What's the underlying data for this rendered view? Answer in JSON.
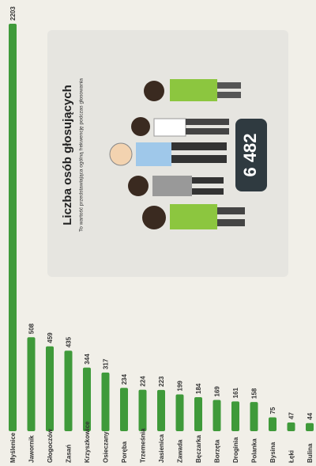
{
  "chart_data": {
    "type": "bar",
    "title": "Liczba osób głosujących",
    "subtitle": "To wartość przedstawiająca ogólną frekwencję podczas głosowania",
    "annotation": "6 482",
    "categories": [
      "Myślenice",
      "Jawornik",
      "Głogoczów",
      "Zasań",
      "Krzyszkowice",
      "Osieczany",
      "Poręba",
      "Trzemeśnia",
      "Jasienica",
      "Zawada",
      "Bęczarka",
      "Borzęta",
      "Droginia",
      "Polanka",
      "Bysina",
      "Łęki",
      "Bulina"
    ],
    "values": [
      2203,
      508,
      459,
      435,
      344,
      317,
      234,
      224,
      223,
      199,
      184,
      169,
      161,
      158,
      75,
      47,
      44
    ],
    "color": "#3f9a3a",
    "ylim": [
      0,
      2250
    ]
  }
}
